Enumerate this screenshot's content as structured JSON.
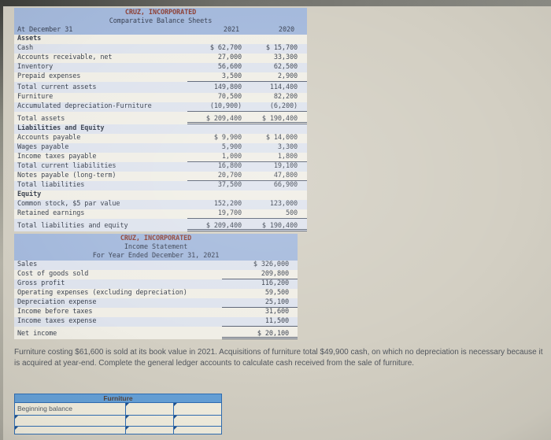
{
  "colors": {
    "page_background": "#d3cfc3",
    "table_header_blue": "#a4b9dc",
    "company_title_red": "#8e4237",
    "row_stripe_blue": "#dee3ed",
    "ledger_header_blue": "#64a0d8",
    "ledger_border_blue": "#2e6db4"
  },
  "balance_sheet": {
    "title": "CRUZ, INCORPORATED",
    "subtitle": "Comparative Balance Sheets",
    "date_label": "At December 31",
    "col_2021": "2021",
    "col_2020": "2020",
    "rows": [
      {
        "label": "Assets",
        "v2021": "",
        "v2020": "",
        "cls": "section"
      },
      {
        "label": "Cash",
        "v2021": "$ 62,700",
        "v2020": "$ 15,700",
        "cls": ""
      },
      {
        "label": "Accounts receivable, net",
        "v2021": "27,000",
        "v2020": "33,300",
        "cls": ""
      },
      {
        "label": "Inventory",
        "v2021": "56,600",
        "v2020": "62,500",
        "cls": ""
      },
      {
        "label": "Prepaid expenses",
        "v2021": "3,500",
        "v2020": "2,900",
        "cls": "rule"
      },
      {
        "label": "Total current assets",
        "v2021": "149,800",
        "v2020": "114,400",
        "cls": "gap2"
      },
      {
        "label": "Furniture",
        "v2021": "70,500",
        "v2020": "82,200",
        "cls": ""
      },
      {
        "label": "Accumulated depreciation-Furniture",
        "v2021": "(10,900)",
        "v2020": "(6,200)",
        "cls": "rule"
      },
      {
        "label": "Total assets",
        "v2021": "$ 209,400",
        "v2020": "$ 190,400",
        "cls": "gap dbl"
      },
      {
        "label": "Liabilities and Equity",
        "v2021": "",
        "v2020": "",
        "cls": "section"
      },
      {
        "label": "Accounts payable",
        "v2021": "$ 9,900",
        "v2020": "$ 14,000",
        "cls": ""
      },
      {
        "label": "Wages payable",
        "v2021": "5,900",
        "v2020": "3,300",
        "cls": ""
      },
      {
        "label": "Income taxes payable",
        "v2021": "1,000",
        "v2020": "1,800",
        "cls": "rule"
      },
      {
        "label": "Total current liabilities",
        "v2021": "16,800",
        "v2020": "19,100",
        "cls": ""
      },
      {
        "label": "Notes payable (long-term)",
        "v2021": "20,700",
        "v2020": "47,800",
        "cls": "rule"
      },
      {
        "label": "Total liabilities",
        "v2021": "37,500",
        "v2020": "66,900",
        "cls": ""
      },
      {
        "label": "Equity",
        "v2021": "",
        "v2020": "",
        "cls": "section"
      },
      {
        "label": "Common stock, $5 par value",
        "v2021": "152,200",
        "v2020": "123,000",
        "cls": ""
      },
      {
        "label": "Retained earnings",
        "v2021": "19,700",
        "v2020": "500",
        "cls": "rule"
      },
      {
        "label": "Total liabilities and equity",
        "v2021": "$ 209,400",
        "v2020": "$ 190,400",
        "cls": "gap dbl"
      }
    ]
  },
  "income_statement": {
    "title": "CRUZ, INCORPORATED",
    "subtitle": "Income Statement",
    "period": "For Year Ended December 31, 2021",
    "rows": [
      {
        "label": "Sales",
        "amount": "$ 326,000",
        "cls": ""
      },
      {
        "label": "Cost of goods sold",
        "amount": "209,800",
        "cls": "rule"
      },
      {
        "label": "Gross profit",
        "amount": "116,200",
        "cls": ""
      },
      {
        "label": "Operating expenses (excluding depreciation)",
        "amount": "59,500",
        "cls": ""
      },
      {
        "label": "Depreciation expense",
        "amount": "25,100",
        "cls": "rule"
      },
      {
        "label": "Income before taxes",
        "amount": "31,600",
        "cls": ""
      },
      {
        "label": "Income taxes expense",
        "amount": "11,500",
        "cls": "rule"
      },
      {
        "label": "Net income",
        "amount": "$ 20,100",
        "cls": "gap dbl"
      }
    ]
  },
  "problem_text": "Furniture costing $61,600 is sold at its book value in 2021. Acquisitions of furniture total $49,900 cash, on which no depreciation is necessary because it is acquired at year-end. Complete the general ledger accounts to calculate cash received from the sale of furniture.",
  "ledger": {
    "account_title": "Furniture",
    "rows": [
      {
        "label": "Beginning balance",
        "debit": "",
        "credit": "",
        "cls": "r1"
      },
      {
        "label": "",
        "debit": "",
        "credit": "",
        "cls": "r2"
      },
      {
        "label": "",
        "debit": "",
        "credit": "",
        "cls": "r3"
      }
    ]
  }
}
